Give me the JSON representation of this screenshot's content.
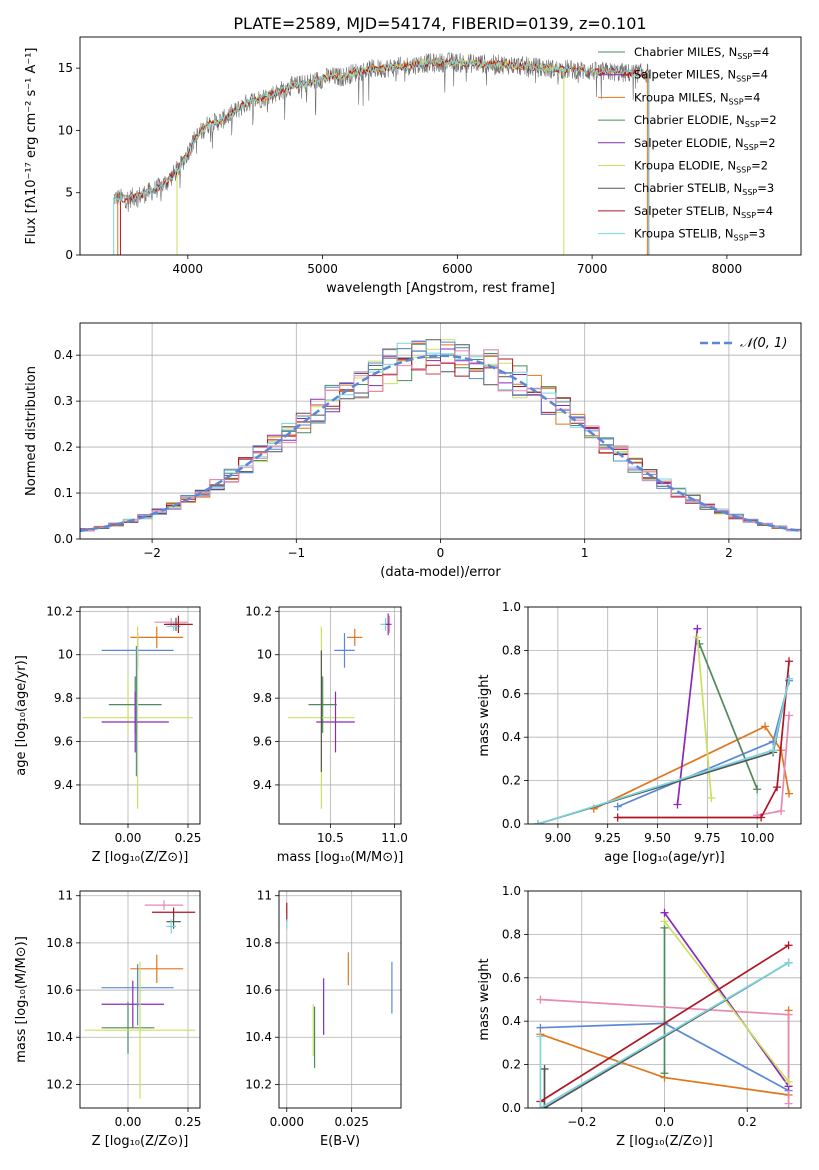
{
  "figure_title": "PLATE=2589, MJD=54174, FIBERID=0139, z=0.101",
  "colors": {
    "blue": "#5b87d8",
    "orange": "#e0761c",
    "green": "#4d8a5c",
    "pink": "#e68ab3",
    "purple": "#8a2ab8",
    "yellow": "#cbe060",
    "gray": "#555555",
    "red": "#b01524",
    "cyan": "#7bd4de",
    "gauss": "#5b87d8"
  },
  "chart_data": [
    {
      "id": "spectrum",
      "type": "line",
      "title": "",
      "xlabel": "wavelength [Angstrom, rest frame]",
      "ylabel": "Flux [fλ10⁻¹⁷ erg cm⁻² s⁻¹ A⁻¹]",
      "xlim": [
        3200,
        8550
      ],
      "ylim": [
        0,
        17.5
      ],
      "xticks": [
        4000,
        5000,
        6000,
        7000,
        8000
      ],
      "yticks": [
        0,
        5,
        10,
        15
      ],
      "grid": false,
      "legend_position": "right",
      "legend": [
        {
          "label": "Chabrier MILES, N",
          "sub": "SSP",
          "tail": "=4",
          "color": "green"
        },
        {
          "label": "Salpeter MILES, N",
          "sub": "SSP",
          "tail": "=4",
          "color": "purple"
        },
        {
          "label": "Kroupa MILES, N",
          "sub": "SSP",
          "tail": "=4",
          "color": "orange"
        },
        {
          "label": "Chabrier ELODIE, N",
          "sub": "SSP",
          "tail": "=2",
          "color": "green"
        },
        {
          "label": "Salpeter ELODIE, N",
          "sub": "SSP",
          "tail": "=2",
          "color": "purple"
        },
        {
          "label": "Kroupa ELODIE, N",
          "sub": "SSP",
          "tail": "=2",
          "color": "yellow"
        },
        {
          "label": "Chabrier STELIB, N",
          "sub": "SSP",
          "tail": "=3",
          "color": "gray"
        },
        {
          "label": "Salpeter STELIB, N",
          "sub": "SSP",
          "tail": "=4",
          "color": "red"
        },
        {
          "label": "Kroupa STELIB, N",
          "sub": "SSP",
          "tail": "=3",
          "color": "cyan"
        }
      ],
      "continuum": [
        [
          3450,
          4.6
        ],
        [
          3550,
          4.5
        ],
        [
          3650,
          4.8
        ],
        [
          3750,
          5.2
        ],
        [
          3850,
          5.9
        ],
        [
          3950,
          7.2
        ],
        [
          4050,
          9.3
        ],
        [
          4150,
          10.5
        ],
        [
          4250,
          10.8
        ],
        [
          4350,
          11.5
        ],
        [
          4450,
          12.3
        ],
        [
          4550,
          12.6
        ],
        [
          4650,
          13.0
        ],
        [
          4750,
          13.5
        ],
        [
          4850,
          13.7
        ],
        [
          4950,
          14.0
        ],
        [
          5050,
          14.3
        ],
        [
          5150,
          14.3
        ],
        [
          5250,
          14.7
        ],
        [
          5350,
          14.9
        ],
        [
          5450,
          15.0
        ],
        [
          5550,
          15.1
        ],
        [
          5650,
          15.2
        ],
        [
          5750,
          15.4
        ],
        [
          5850,
          15.4
        ],
        [
          5950,
          15.5
        ],
        [
          6050,
          15.4
        ],
        [
          6150,
          15.4
        ],
        [
          6250,
          15.3
        ],
        [
          6350,
          15.3
        ],
        [
          6450,
          15.2
        ],
        [
          6550,
          15.1
        ],
        [
          6650,
          15.0
        ],
        [
          6750,
          14.9
        ],
        [
          6850,
          14.9
        ],
        [
          6950,
          14.8
        ],
        [
          7050,
          14.7
        ],
        [
          7150,
          14.7
        ],
        [
          7250,
          14.6
        ],
        [
          7350,
          14.6
        ],
        [
          7420,
          14.6
        ]
      ],
      "model_ranges": [
        {
          "color": "orange",
          "x": [
            3480,
            7410
          ]
        },
        {
          "color": "yellow",
          "x": [
            3920,
            6790
          ]
        },
        {
          "color": "red",
          "x": [
            3500,
            7420
          ]
        },
        {
          "color": "cyan",
          "x": [
            3450,
            7420
          ]
        }
      ]
    },
    {
      "id": "residual-hist",
      "type": "histogram",
      "title": "",
      "xlabel": "(data-model)/error",
      "ylabel": "Normed distribution",
      "xlim": [
        -2.5,
        2.5
      ],
      "ylim": [
        0,
        0.47
      ],
      "xticks": [
        -2,
        -1,
        0,
        1,
        2
      ],
      "yticks": [
        0.0,
        0.1,
        0.2,
        0.3,
        0.4
      ],
      "grid": true,
      "legend_position": "top-right",
      "legend": [
        {
          "label": "𝒩(0, 1)",
          "color": "gauss",
          "dashed": true
        }
      ],
      "bin_width": 0.1,
      "series_colors": [
        "green",
        "purple",
        "orange",
        "yellow",
        "gray",
        "red",
        "cyan",
        "blue",
        "pink"
      ]
    },
    {
      "id": "age-vs-Z",
      "type": "errorbar",
      "xlabel": "Z [log₁₀(Z/Z⊙)]",
      "ylabel": "age  [log₁₀(age/yr)]",
      "xlim": [
        -0.2,
        0.3
      ],
      "ylim": [
        9.22,
        10.22
      ],
      "xticks": [
        0.0,
        0.25
      ],
      "yticks": [
        9.4,
        9.6,
        9.8,
        10.0,
        10.2
      ],
      "xtick_labels": [
        "0.00",
        "0.25"
      ],
      "grid": true,
      "points": [
        {
          "x": 0.18,
          "xerr": 0.07,
          "y": 10.15,
          "yerr": 0.02,
          "color": "pink"
        },
        {
          "x": 0.2,
          "xerr": 0.04,
          "y": 10.14,
          "yerr": 0.03,
          "color": "gray"
        },
        {
          "x": 0.19,
          "xerr": 0.03,
          "y": 10.13,
          "yerr": 0.02,
          "color": "cyan"
        },
        {
          "x": 0.21,
          "xerr": 0.06,
          "y": 10.14,
          "yerr": 0.04,
          "color": "red"
        },
        {
          "x": 0.12,
          "xerr": 0.11,
          "y": 10.08,
          "yerr": 0.05,
          "color": "orange"
        },
        {
          "x": 0.04,
          "xerr": 0.15,
          "y": 10.02,
          "yerr": 0.08,
          "color": "blue"
        },
        {
          "x": 0.0,
          "xerr": 0.0,
          "y": 9.77,
          "yerr": 0.13,
          "color": "yellow"
        },
        {
          "x": 0.03,
          "xerr": 0.11,
          "y": 9.77,
          "yerr": 0.13,
          "color": "green"
        },
        {
          "x": 0.04,
          "xerr": 0.23,
          "y": 9.71,
          "yerr": 0.42,
          "color": "yellow"
        },
        {
          "x": 0.03,
          "xerr": 0.14,
          "y": 9.69,
          "yerr": 0.14,
          "color": "purple"
        },
        {
          "x": 0.035,
          "xerr": 0.0,
          "y": 9.74,
          "yerr": 0.3,
          "color": "blue"
        }
      ]
    },
    {
      "id": "age-vs-mass",
      "type": "errorbar",
      "xlabel": "mass [log₁₀(M/M⊙)]",
      "ylabel": "",
      "xlim": [
        10.1,
        11.05
      ],
      "ylim": [
        9.22,
        10.22
      ],
      "xticks": [
        10.5,
        11.0
      ],
      "yticks": [
        9.4,
        9.6,
        9.8,
        10.0,
        10.2
      ],
      "xtick_labels": [
        "10.5",
        "11.0"
      ],
      "grid": true,
      "points": [
        {
          "x": 10.96,
          "xerr": 0.02,
          "y": 10.14,
          "yerr": 0.04,
          "color": "pink"
        },
        {
          "x": 10.93,
          "xerr": 0.04,
          "y": 10.14,
          "yerr": 0.03,
          "color": "cyan"
        },
        {
          "x": 10.95,
          "xerr": 0.02,
          "y": 10.14,
          "yerr": 0.05,
          "color": "purple"
        },
        {
          "x": 10.69,
          "xerr": 0.06,
          "y": 10.08,
          "yerr": 0.04,
          "color": "orange"
        },
        {
          "x": 10.61,
          "xerr": 0.08,
          "y": 10.02,
          "yerr": 0.08,
          "color": "blue"
        },
        {
          "x": 10.44,
          "xerr": 0.11,
          "y": 9.77,
          "yerr": 0.13,
          "color": "green"
        },
        {
          "x": 10.43,
          "xerr": 0.26,
          "y": 9.71,
          "yerr": 0.42,
          "color": "yellow"
        },
        {
          "x": 10.54,
          "xerr": 0.15,
          "y": 9.69,
          "yerr": 0.14,
          "color": "purple"
        },
        {
          "x": 10.43,
          "xerr": 0.0,
          "y": 9.74,
          "yerr": 0.28,
          "color": "gray"
        }
      ]
    },
    {
      "id": "weight-vs-age",
      "type": "line",
      "xlabel": "age  [log₁₀(age/yr)]",
      "ylabel": "mass weight",
      "xlim": [
        8.85,
        10.22
      ],
      "ylim": [
        0,
        1.0
      ],
      "xticks": [
        9.0,
        9.25,
        9.5,
        9.75,
        10.0
      ],
      "yticks": [
        0.0,
        0.2,
        0.4,
        0.6,
        0.8,
        1.0
      ],
      "xtick_labels": [
        "9.00",
        "9.25",
        "9.50",
        "9.75",
        "10.00"
      ],
      "ytick_labels": [
        "0.0",
        "0.2",
        "0.4",
        "0.6",
        "0.8",
        "1.0"
      ],
      "grid": true,
      "series": [
        {
          "color": "blue",
          "x": [
            9.3,
            10.08,
            10.16
          ],
          "y": [
            0.08,
            0.38,
            0.66
          ]
        },
        {
          "color": "orange",
          "x": [
            9.18,
            10.04,
            10.12,
            10.16
          ],
          "y": [
            0.07,
            0.45,
            0.34,
            0.14
          ]
        },
        {
          "color": "green",
          "x": [
            9.71,
            10.0
          ],
          "y": [
            0.83,
            0.16
          ]
        },
        {
          "color": "pink",
          "x": [
            10.0,
            10.12,
            10.16
          ],
          "y": [
            0.04,
            0.06,
            0.5
          ]
        },
        {
          "color": "purple",
          "x": [
            9.6,
            9.7
          ],
          "y": [
            0.09,
            0.9
          ]
        },
        {
          "color": "yellow",
          "x": [
            9.7,
            9.77
          ],
          "y": [
            0.86,
            0.12
          ]
        },
        {
          "color": "gray",
          "x": [
            8.9,
            10.08,
            10.16
          ],
          "y": [
            0.0,
            0.33,
            0.67
          ]
        },
        {
          "color": "red",
          "x": [
            9.3,
            10.02,
            10.1,
            10.16
          ],
          "y": [
            0.03,
            0.03,
            0.17,
            0.75
          ]
        },
        {
          "color": "cyan",
          "x": [
            8.9,
            10.08,
            10.16
          ],
          "y": [
            0.0,
            0.34,
            0.67
          ]
        }
      ]
    },
    {
      "id": "mass-vs-Z",
      "type": "errorbar",
      "xlabel": "Z [log₁₀(Z/Z⊙)]",
      "ylabel": "mass [log₁₀(M/M⊙)]",
      "xlim": [
        -0.2,
        0.3
      ],
      "ylim": [
        10.1,
        11.02
      ],
      "xticks": [
        0.0,
        0.25
      ],
      "yticks": [
        10.2,
        10.4,
        10.6,
        10.8,
        11.0
      ],
      "xtick_labels": [
        "0.00",
        "0.25"
      ],
      "grid": true,
      "points": [
        {
          "x": 0.15,
          "xerr": 0.08,
          "y": 10.96,
          "yerr": 0.02,
          "color": "pink"
        },
        {
          "x": 0.19,
          "xerr": 0.09,
          "y": 10.93,
          "yerr": 0.02,
          "color": "red"
        },
        {
          "x": 0.19,
          "xerr": 0.03,
          "y": 10.89,
          "yerr": 0.03,
          "color": "gray"
        },
        {
          "x": 0.18,
          "xerr": 0.02,
          "y": 10.87,
          "yerr": 0.03,
          "color": "cyan"
        },
        {
          "x": 0.12,
          "xerr": 0.11,
          "y": 10.69,
          "yerr": 0.06,
          "color": "orange"
        },
        {
          "x": 0.04,
          "xerr": 0.15,
          "y": 10.61,
          "yerr": 0.08,
          "color": "blue"
        },
        {
          "x": 0.02,
          "xerr": 0.13,
          "y": 10.54,
          "yerr": 0.1,
          "color": "purple"
        },
        {
          "x": 0.0,
          "xerr": 0.11,
          "y": 10.44,
          "yerr": 0.11,
          "color": "green"
        },
        {
          "x": 0.05,
          "xerr": 0.23,
          "y": 10.43,
          "yerr": 0.29,
          "color": "yellow"
        },
        {
          "x": 0.04,
          "xerr": 0.0,
          "y": 10.58,
          "yerr": 0.13,
          "color": "blue"
        }
      ]
    },
    {
      "id": "mass-vs-ebv",
      "type": "errorbar",
      "xlabel": "E(B-V)",
      "ylabel": "",
      "xlim": [
        -0.003,
        0.044
      ],
      "ylim": [
        10.1,
        11.02
      ],
      "xticks": [
        0.0,
        0.025
      ],
      "yticks": [
        10.2,
        10.4,
        10.6,
        10.8,
        11.0
      ],
      "xtick_labels": [
        "0.000",
        "0.025"
      ],
      "grid": true,
      "points": [
        {
          "x": 0.0,
          "xerr": 0.0,
          "y": 10.93,
          "yerr": 0.04,
          "color": "red"
        },
        {
          "x": 0.0,
          "xerr": 0.0,
          "y": 10.88,
          "yerr": 0.02,
          "color": "cyan"
        },
        {
          "x": 0.0237,
          "xerr": 0.0,
          "y": 10.69,
          "yerr": 0.07,
          "color": "orange"
        },
        {
          "x": 0.0405,
          "xerr": 0.0,
          "y": 10.61,
          "yerr": 0.11,
          "color": "blue"
        },
        {
          "x": 0.0142,
          "xerr": 0.0,
          "y": 10.53,
          "yerr": 0.12,
          "color": "purple"
        },
        {
          "x": 0.0102,
          "xerr": 0.0,
          "y": 10.43,
          "yerr": 0.11,
          "color": "yellow"
        },
        {
          "x": 0.0107,
          "xerr": 0.0,
          "y": 10.4,
          "yerr": 0.13,
          "color": "green"
        }
      ]
    },
    {
      "id": "weight-vs-Z",
      "type": "line",
      "xlabel": "Z [log₁₀(Z/Z⊙)]",
      "ylabel": "mass weight",
      "xlim": [
        -0.33,
        0.33
      ],
      "ylim": [
        0,
        1.0
      ],
      "xticks": [
        -0.2,
        0.0,
        0.2
      ],
      "yticks": [
        0.0,
        0.2,
        0.4,
        0.6,
        0.8,
        1.0
      ],
      "xtick_labels": [
        "−0.2",
        "0.0",
        "0.2"
      ],
      "ytick_labels": [
        "0.0",
        "0.2",
        "0.4",
        "0.6",
        "0.8",
        "1.0"
      ],
      "grid": true,
      "series": [
        {
          "color": "blue",
          "x": [
            -0.3,
            0.0,
            0.3
          ],
          "y": [
            0.37,
            0.39,
            0.08
          ]
        },
        {
          "color": "orange",
          "x": [
            -0.3,
            0.0,
            0.3,
            0.3
          ],
          "y": [
            0.34,
            0.14,
            0.06,
            0.45
          ]
        },
        {
          "color": "green",
          "x": [
            0.0,
            0.0
          ],
          "y": [
            0.16,
            0.83
          ]
        },
        {
          "color": "pink",
          "x": [
            -0.3,
            0.3,
            0.3
          ],
          "y": [
            0.5,
            0.43,
            0.02
          ]
        },
        {
          "color": "purple",
          "x": [
            0.0,
            0.3
          ],
          "y": [
            0.9,
            0.1
          ]
        },
        {
          "color": "yellow",
          "x": [
            0.0,
            0.3
          ],
          "y": [
            0.86,
            0.12
          ]
        },
        {
          "color": "gray",
          "x": [
            -0.29,
            -0.29,
            0.3
          ],
          "y": [
            0.18,
            0.0,
            0.67
          ]
        },
        {
          "color": "red",
          "x": [
            -0.3,
            0.3
          ],
          "y": [
            0.03,
            0.75
          ]
        },
        {
          "color": "cyan",
          "x": [
            -0.3,
            -0.3,
            0.3
          ],
          "y": [
            0.33,
            0.0,
            0.67
          ]
        }
      ]
    }
  ]
}
